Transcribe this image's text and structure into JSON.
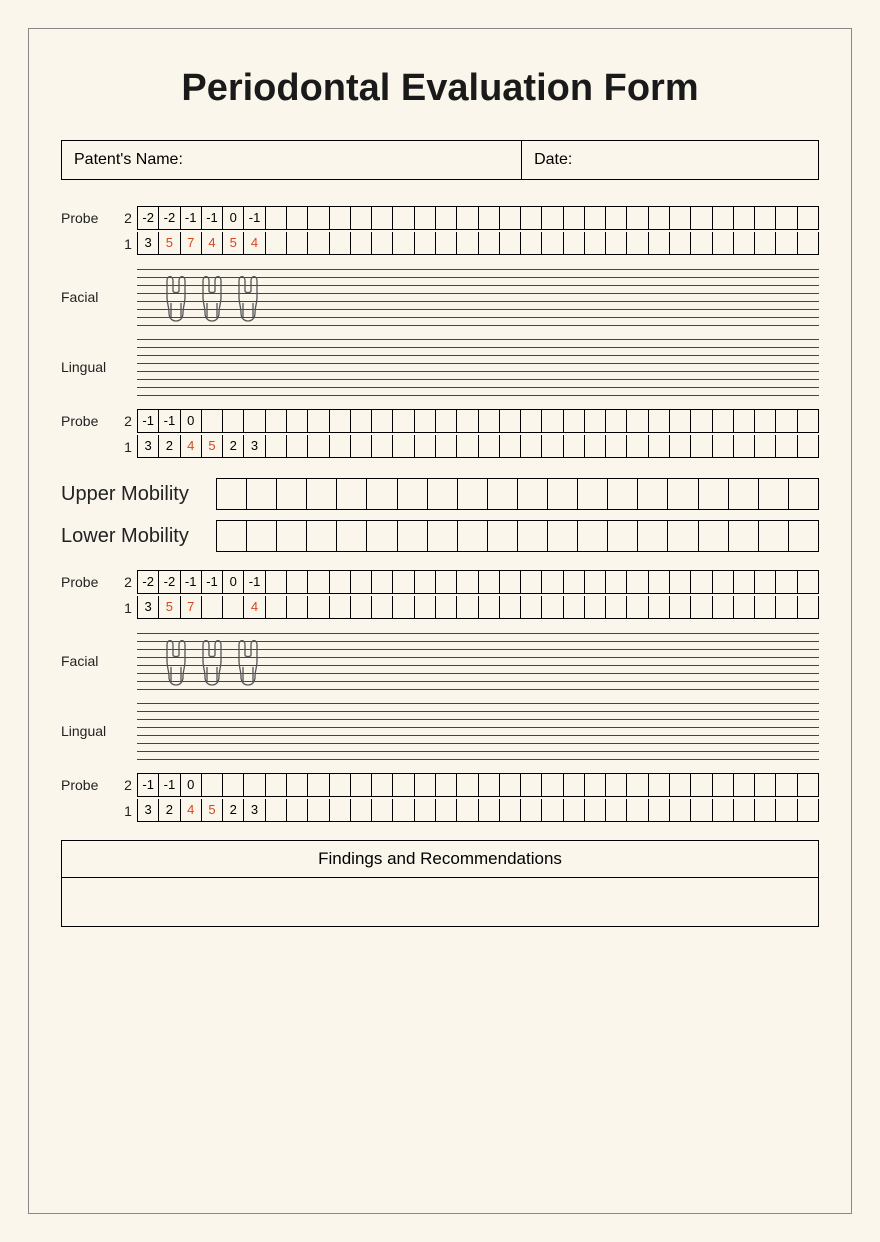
{
  "title": "Periodontal Evaluation Form",
  "header": {
    "name_label": "Patent's Name:",
    "date_label": "Date:"
  },
  "labels": {
    "probe": "Probe",
    "facial": "Facial",
    "lingual": "Lingual",
    "upper_mobility": "Upper Mobility",
    "lower_mobility": "Lower Mobility",
    "row2": "2",
    "row1": "1",
    "findings": "Findings and Recommendations"
  },
  "grid": {
    "probe_cols": 32,
    "mobility_cols": 20,
    "staff_lines": 8
  },
  "colors": {
    "bg": "#faf6ec",
    "text": "#1a1a1a",
    "accent": "#d9461a",
    "border": "#000000",
    "staff": "#444444"
  },
  "block1": {
    "probe_a": {
      "r2": [
        {
          "v": "-2"
        },
        {
          "v": "-2"
        },
        {
          "v": "-1"
        },
        {
          "v": "-1"
        },
        {
          "v": "0"
        },
        {
          "v": "-1"
        }
      ],
      "r1": [
        {
          "v": "3"
        },
        {
          "v": "5",
          "red": true
        },
        {
          "v": "7",
          "red": true
        },
        {
          "v": "4",
          "red": true
        },
        {
          "v": "5",
          "red": true
        },
        {
          "v": "4",
          "red": true
        }
      ]
    },
    "teeth_a": [
      {
        "x": 24
      },
      {
        "x": 60
      },
      {
        "x": 96
      }
    ],
    "probe_b": {
      "r2": [
        {
          "v": "-1"
        },
        {
          "v": "-1"
        },
        {
          "v": "0"
        }
      ],
      "r1": [
        {
          "v": "3"
        },
        {
          "v": "2"
        },
        {
          "v": "4",
          "red": true
        },
        {
          "v": "5",
          "red": true
        },
        {
          "v": "2"
        },
        {
          "v": "3"
        }
      ]
    }
  },
  "block2": {
    "probe_a": {
      "r2": [
        {
          "v": "-2"
        },
        {
          "v": "-2"
        },
        {
          "v": "-1"
        },
        {
          "v": "-1"
        },
        {
          "v": "0"
        },
        {
          "v": "-1"
        }
      ],
      "r1": [
        {
          "v": "3"
        },
        {
          "v": "5",
          "red": true
        },
        {
          "v": "7",
          "red": true
        },
        {
          "v": ""
        },
        {
          "v": ""
        },
        {
          "v": "4",
          "red": true
        }
      ]
    },
    "teeth_a": [
      {
        "x": 24
      },
      {
        "x": 60
      },
      {
        "x": 96
      }
    ],
    "probe_b": {
      "r2": [
        {
          "v": "-1"
        },
        {
          "v": "-1"
        },
        {
          "v": "0"
        }
      ],
      "r1": [
        {
          "v": "3"
        },
        {
          "v": "2"
        },
        {
          "v": "4",
          "red": true
        },
        {
          "v": "5",
          "red": true
        },
        {
          "v": "2"
        },
        {
          "v": "3"
        }
      ]
    }
  }
}
